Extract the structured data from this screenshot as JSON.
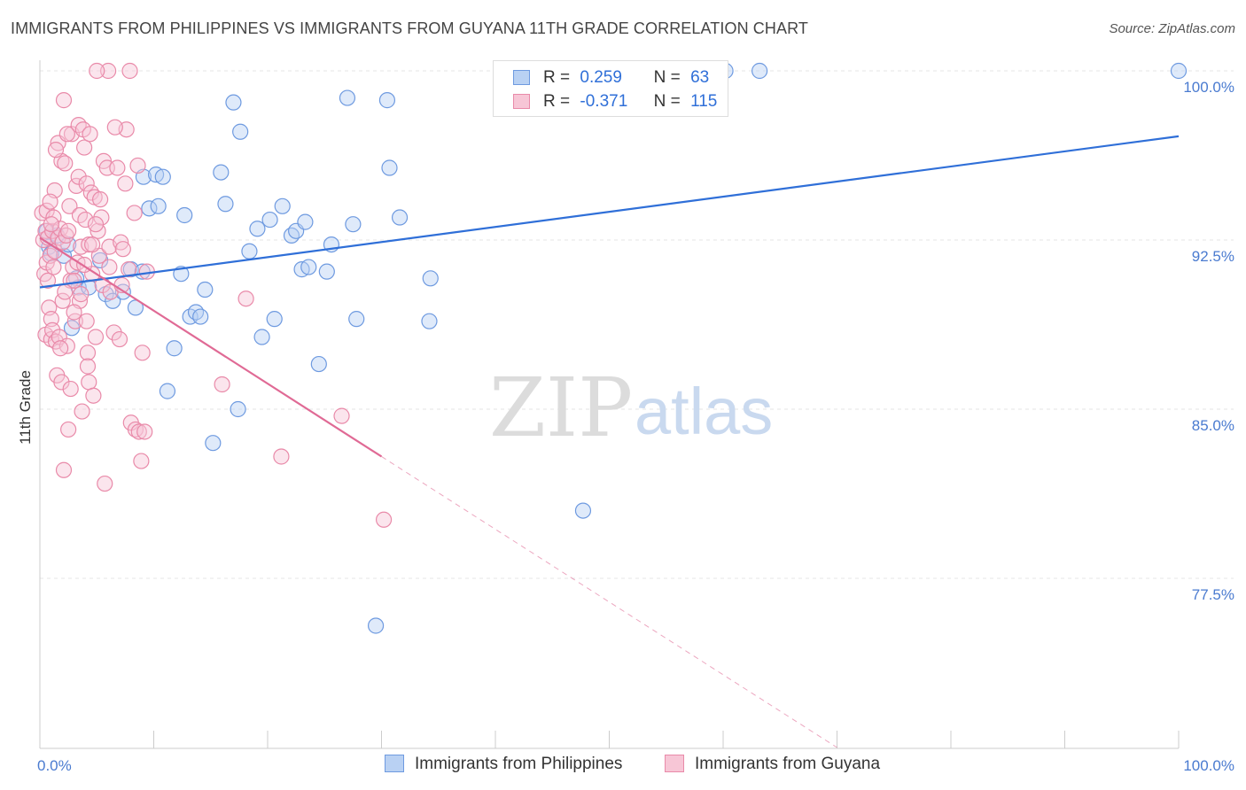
{
  "header": {
    "title": "IMMIGRANTS FROM PHILIPPINES VS IMMIGRANTS FROM GUYANA 11TH GRADE CORRELATION CHART",
    "source": "Source: ZipAtlas.com"
  },
  "watermark": {
    "zip": "ZIP",
    "atlas": "atlas"
  },
  "legend": {
    "r_label": "R =",
    "n_label": "N =",
    "series": [
      {
        "r": "0.259",
        "n": "63"
      },
      {
        "r": "-0.371",
        "n": "115"
      }
    ]
  },
  "colors": {
    "blue_fill": "#b9d1f3",
    "blue_stroke": "#6e9ae0",
    "blue_line": "#2f6fd8",
    "pink_fill": "#f7c6d6",
    "pink_stroke": "#e98aa9",
    "pink_line": "#e06a95",
    "grid": "#e6e6e6",
    "tick_text": "#4a7bd0"
  },
  "chart_data": {
    "type": "scatter",
    "title": "IMMIGRANTS FROM PHILIPPINES VS IMMIGRANTS FROM GUYANA 11TH GRADE CORRELATION CHART",
    "xlabel": "",
    "ylabel": "11th Grade",
    "xlim": [
      0,
      100
    ],
    "ylim": [
      70.0,
      101.0
    ],
    "x_tick_labels": [
      "0.0%",
      "100.0%"
    ],
    "y_ticks": [
      77.5,
      85.0,
      92.5,
      100.0
    ],
    "y_tick_labels": [
      "77.5%",
      "85.0%",
      "92.5%",
      "100.0%"
    ],
    "grid": true,
    "legend_position": "bottom",
    "series": [
      {
        "name": "Immigrants from Philippines",
        "trend": {
          "x": [
            0,
            100
          ],
          "y": [
            90.4,
            97.1
          ],
          "dashed_from": null
        },
        "points": [
          [
            0.6,
            92.9
          ],
          [
            0.8,
            92.2
          ],
          [
            1.0,
            91.9
          ],
          [
            1.5,
            92.7
          ],
          [
            2.1,
            91.8
          ],
          [
            2.5,
            92.3
          ],
          [
            2.8,
            88.6
          ],
          [
            3.2,
            90.8
          ],
          [
            3.4,
            90.4
          ],
          [
            4.3,
            90.4
          ],
          [
            5.3,
            91.6
          ],
          [
            5.8,
            90.1
          ],
          [
            6.4,
            89.8
          ],
          [
            7.3,
            90.2
          ],
          [
            8.0,
            91.2
          ],
          [
            8.4,
            89.5
          ],
          [
            9.0,
            91.1
          ],
          [
            9.1,
            95.3
          ],
          [
            9.6,
            93.9
          ],
          [
            10.2,
            95.4
          ],
          [
            10.4,
            94.0
          ],
          [
            10.8,
            95.3
          ],
          [
            11.2,
            85.8
          ],
          [
            11.8,
            87.7
          ],
          [
            12.4,
            91.0
          ],
          [
            12.7,
            93.6
          ],
          [
            13.2,
            89.1
          ],
          [
            13.7,
            89.3
          ],
          [
            14.1,
            89.1
          ],
          [
            14.5,
            90.3
          ],
          [
            15.2,
            83.5
          ],
          [
            15.9,
            95.5
          ],
          [
            16.3,
            94.1
          ],
          [
            17.0,
            98.6
          ],
          [
            17.4,
            85.0
          ],
          [
            17.6,
            97.3
          ],
          [
            18.4,
            92.0
          ],
          [
            19.1,
            93.0
          ],
          [
            19.5,
            88.2
          ],
          [
            20.2,
            93.4
          ],
          [
            20.6,
            89.0
          ],
          [
            21.3,
            94.0
          ],
          [
            22.1,
            92.7
          ],
          [
            22.5,
            92.9
          ],
          [
            23.0,
            91.2
          ],
          [
            23.3,
            93.3
          ],
          [
            23.6,
            91.3
          ],
          [
            24.5,
            87.0
          ],
          [
            25.2,
            91.1
          ],
          [
            25.6,
            92.3
          ],
          [
            27.0,
            98.8
          ],
          [
            27.5,
            93.2
          ],
          [
            27.8,
            89.0
          ],
          [
            30.5,
            98.7
          ],
          [
            29.5,
            75.4
          ],
          [
            30.7,
            95.7
          ],
          [
            31.6,
            93.5
          ],
          [
            34.2,
            88.9
          ],
          [
            34.3,
            90.8
          ],
          [
            47.7,
            80.5
          ],
          [
            60.2,
            100.0
          ],
          [
            63.2,
            100.0
          ],
          [
            100.0,
            100.0
          ]
        ]
      },
      {
        "name": "Immigrants from Guyana",
        "trend": {
          "x": [
            0,
            30,
            70
          ],
          "y": [
            92.6,
            82.9,
            70.0
          ],
          "dashed_from": 30
        },
        "points": [
          [
            0.2,
            93.7
          ],
          [
            0.3,
            92.5
          ],
          [
            0.4,
            91.0
          ],
          [
            0.5,
            88.3
          ],
          [
            0.5,
            92.9
          ],
          [
            0.6,
            93.8
          ],
          [
            0.6,
            91.5
          ],
          [
            0.7,
            90.7
          ],
          [
            0.7,
            92.6
          ],
          [
            0.8,
            89.5
          ],
          [
            0.9,
            91.8
          ],
          [
            1.0,
            89.0
          ],
          [
            1.0,
            88.1
          ],
          [
            1.1,
            92.9
          ],
          [
            1.1,
            88.5
          ],
          [
            1.2,
            93.5
          ],
          [
            1.2,
            91.3
          ],
          [
            1.3,
            94.7
          ],
          [
            1.3,
            92.0
          ],
          [
            1.4,
            88.0
          ],
          [
            1.5,
            86.5
          ],
          [
            1.6,
            92.6
          ],
          [
            1.6,
            96.8
          ],
          [
            1.7,
            88.2
          ],
          [
            1.8,
            93.0
          ],
          [
            1.9,
            86.2
          ],
          [
            1.9,
            96.0
          ],
          [
            2.0,
            92.4
          ],
          [
            2.0,
            89.8
          ],
          [
            2.1,
            82.3
          ],
          [
            2.1,
            98.7
          ],
          [
            2.2,
            95.9
          ],
          [
            2.3,
            92.7
          ],
          [
            2.4,
            87.8
          ],
          [
            2.5,
            84.1
          ],
          [
            2.5,
            92.9
          ],
          [
            2.6,
            94.0
          ],
          [
            2.7,
            90.7
          ],
          [
            2.8,
            97.2
          ],
          [
            2.9,
            91.3
          ],
          [
            3.0,
            90.7
          ],
          [
            3.1,
            88.9
          ],
          [
            3.2,
            94.9
          ],
          [
            3.3,
            91.5
          ],
          [
            3.4,
            97.6
          ],
          [
            3.4,
            95.3
          ],
          [
            3.5,
            89.8
          ],
          [
            3.5,
            93.6
          ],
          [
            3.6,
            92.2
          ],
          [
            3.6,
            90.1
          ],
          [
            3.7,
            84.9
          ],
          [
            3.8,
            97.4
          ],
          [
            3.9,
            96.6
          ],
          [
            4.0,
            93.4
          ],
          [
            4.1,
            88.9
          ],
          [
            4.1,
            95.0
          ],
          [
            4.2,
            87.5
          ],
          [
            4.2,
            86.9
          ],
          [
            4.3,
            86.2
          ],
          [
            4.3,
            92.3
          ],
          [
            4.4,
            97.2
          ],
          [
            4.5,
            94.6
          ],
          [
            4.6,
            91.0
          ],
          [
            4.7,
            85.6
          ],
          [
            4.8,
            94.4
          ],
          [
            4.9,
            88.2
          ],
          [
            5.1,
            92.9
          ],
          [
            5.2,
            91.8
          ],
          [
            5.4,
            93.5
          ],
          [
            5.5,
            90.5
          ],
          [
            5.6,
            96.0
          ],
          [
            5.7,
            81.7
          ],
          [
            5.9,
            95.7
          ],
          [
            6.1,
            92.2
          ],
          [
            6.1,
            91.3
          ],
          [
            6.2,
            90.2
          ],
          [
            6.5,
            88.4
          ],
          [
            6.8,
            95.7
          ],
          [
            7.0,
            88.1
          ],
          [
            7.1,
            92.4
          ],
          [
            7.2,
            90.5
          ],
          [
            7.3,
            92.1
          ],
          [
            7.6,
            97.4
          ],
          [
            7.8,
            91.2
          ],
          [
            8.0,
            84.4
          ],
          [
            8.3,
            93.7
          ],
          [
            8.4,
            84.1
          ],
          [
            8.6,
            95.8
          ],
          [
            8.7,
            84.0
          ],
          [
            8.9,
            82.7
          ],
          [
            9.2,
            84.0
          ],
          [
            9.4,
            91.1
          ],
          [
            7.9,
            100.0
          ],
          [
            6.0,
            100.0
          ],
          [
            16.0,
            86.1
          ],
          [
            18.1,
            89.9
          ],
          [
            21.2,
            82.9
          ],
          [
            26.5,
            84.7
          ],
          [
            30.2,
            80.1
          ],
          [
            5.0,
            100.0
          ],
          [
            9.0,
            87.5
          ],
          [
            1.4,
            96.5
          ],
          [
            2.4,
            97.2
          ],
          [
            3.0,
            89.3
          ],
          [
            4.6,
            92.3
          ],
          [
            5.3,
            94.3
          ],
          [
            1.8,
            87.7
          ],
          [
            0.9,
            94.2
          ],
          [
            2.7,
            85.9
          ],
          [
            6.6,
            97.5
          ],
          [
            7.5,
            95.0
          ],
          [
            3.9,
            91.4
          ],
          [
            2.2,
            90.2
          ],
          [
            1.0,
            93.2
          ],
          [
            4.9,
            93.2
          ]
        ]
      }
    ]
  },
  "bottom_legend": [
    {
      "label": "Immigrants from Philippines"
    },
    {
      "label": "Immigrants from Guyana"
    }
  ]
}
